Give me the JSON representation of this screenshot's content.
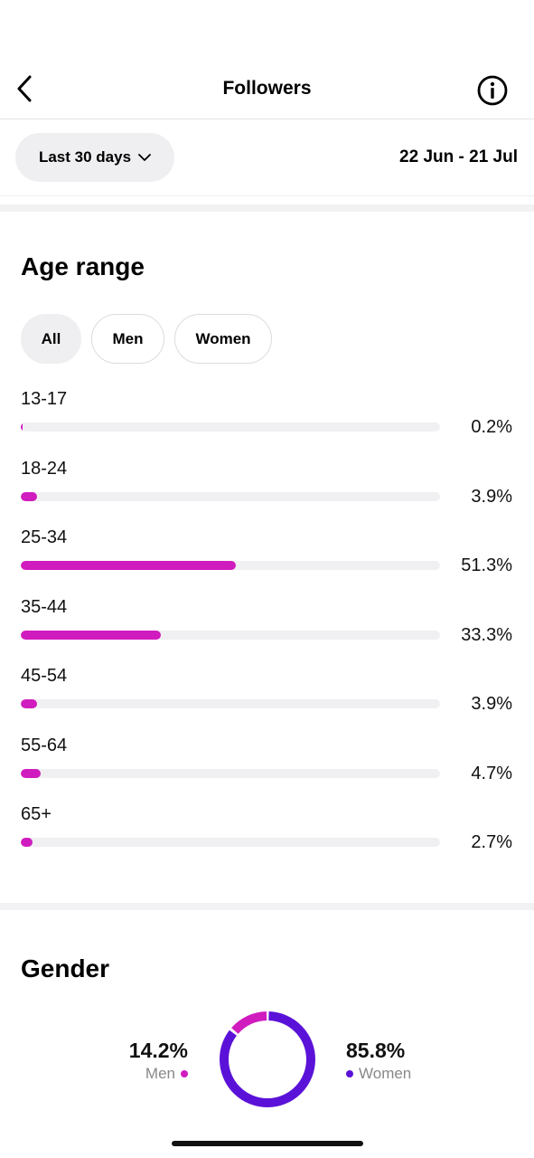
{
  "header": {
    "title": "Followers",
    "back_icon": "chevron-left-icon",
    "info_icon": "info-icon"
  },
  "period": {
    "selected": "Last 30 days",
    "dropdown_icon": "chevron-down-icon",
    "date_range": "22 Jun - 21 Jul"
  },
  "age_range": {
    "title": "Age range",
    "filters": [
      {
        "label": "All",
        "active": true
      },
      {
        "label": "Men",
        "active": false
      },
      {
        "label": "Women",
        "active": false
      }
    ],
    "rows": [
      {
        "label": "13-17",
        "value": "0.2%",
        "pct": 0.2
      },
      {
        "label": "18-24",
        "value": "3.9%",
        "pct": 3.9
      },
      {
        "label": "25-34",
        "value": "51.3%",
        "pct": 51.3
      },
      {
        "label": "35-44",
        "value": "33.3%",
        "pct": 33.3
      },
      {
        "label": "45-54",
        "value": "3.9%",
        "pct": 3.9
      },
      {
        "label": "55-64",
        "value": "4.7%",
        "pct": 4.7
      },
      {
        "label": "65+",
        "value": "2.7%",
        "pct": 2.7
      }
    ]
  },
  "gender": {
    "title": "Gender",
    "men": {
      "label": "Men",
      "value": "14.2%",
      "pct": 14.2,
      "color": "#d01cbf"
    },
    "women": {
      "label": "Women",
      "value": "85.8%",
      "pct": 85.8,
      "color": "#5b12d8"
    }
  },
  "colors": {
    "bar": "#d01cbf",
    "track": "#f0f0f3",
    "pill_bg": "#efeff1"
  }
}
